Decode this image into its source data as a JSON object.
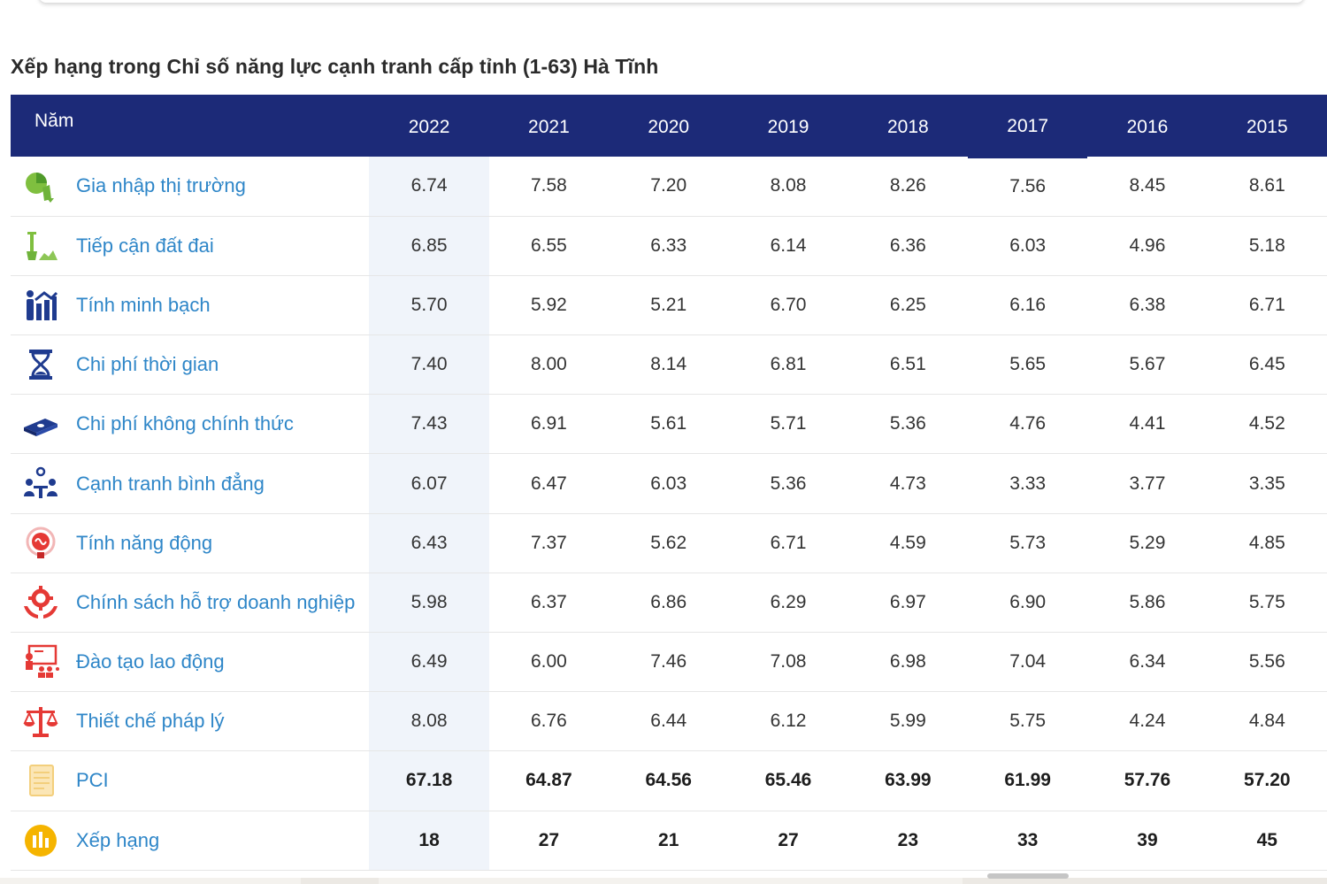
{
  "title": "Xếp hạng trong Chỉ số năng lực cạnh tranh cấp tỉnh (1-63) Hà Tĩnh",
  "table": {
    "label_header": "Năm",
    "years": [
      "2022",
      "2021",
      "2020",
      "2019",
      "2018",
      "2017",
      "2016",
      "2015"
    ],
    "rows": [
      {
        "label": "Gia nhập thị trường",
        "icon": "market-entry-icon",
        "values": [
          "6.74",
          "7.58",
          "7.20",
          "8.08",
          "8.26",
          "7.56",
          "8.45",
          "8.61"
        ]
      },
      {
        "label": "Tiếp cận đất đai",
        "icon": "land-access-icon",
        "values": [
          "6.85",
          "6.55",
          "6.33",
          "6.14",
          "6.36",
          "6.03",
          "4.96",
          "5.18"
        ]
      },
      {
        "label": "Tính minh bạch",
        "icon": "transparency-icon",
        "values": [
          "5.70",
          "5.92",
          "5.21",
          "6.70",
          "6.25",
          "6.16",
          "6.38",
          "6.71"
        ]
      },
      {
        "label": "Chi phí thời gian",
        "icon": "hourglass-icon",
        "values": [
          "7.40",
          "8.00",
          "8.14",
          "6.81",
          "6.51",
          "5.65",
          "5.67",
          "6.45"
        ]
      },
      {
        "label": "Chi phí không chính thức",
        "icon": "money-icon",
        "values": [
          "7.43",
          "6.91",
          "5.61",
          "5.71",
          "5.36",
          "4.76",
          "4.41",
          "4.52"
        ]
      },
      {
        "label": "Cạnh tranh bình đẳng",
        "icon": "fair-competition-icon",
        "values": [
          "6.07",
          "6.47",
          "6.03",
          "5.36",
          "4.73",
          "3.33",
          "3.77",
          "3.35"
        ]
      },
      {
        "label": "Tính năng động",
        "icon": "brain-icon",
        "values": [
          "6.43",
          "7.37",
          "5.62",
          "6.71",
          "4.59",
          "5.73",
          "5.29",
          "4.85"
        ]
      },
      {
        "label": "Chính sách hỗ trợ doanh nghiệp",
        "icon": "gear-hands-icon",
        "values": [
          "5.98",
          "6.37",
          "6.86",
          "6.29",
          "6.97",
          "6.90",
          "5.86",
          "5.75"
        ]
      },
      {
        "label": "Đào tạo lao động",
        "icon": "training-icon",
        "values": [
          "6.49",
          "6.00",
          "7.46",
          "7.08",
          "6.98",
          "7.04",
          "6.34",
          "5.56"
        ]
      },
      {
        "label": "Thiết chế pháp lý",
        "icon": "scales-icon",
        "values": [
          "8.08",
          "6.76",
          "6.44",
          "6.12",
          "5.99",
          "5.75",
          "4.24",
          "4.84"
        ]
      },
      {
        "label": "PCI",
        "icon": "document-icon",
        "bold": true,
        "values": [
          "67.18",
          "64.87",
          "64.56",
          "65.46",
          "63.99",
          "61.99",
          "57.76",
          "57.20"
        ]
      },
      {
        "label": "Xếp hạng",
        "icon": "ranking-icon",
        "bold": true,
        "values": [
          "18",
          "27",
          "21",
          "27",
          "23",
          "33",
          "39",
          "45"
        ]
      }
    ]
  },
  "colors": {
    "header_bg": "#1c2a78",
    "label_text": "#2e86c8",
    "highlight_column": "#f0f4fa"
  }
}
